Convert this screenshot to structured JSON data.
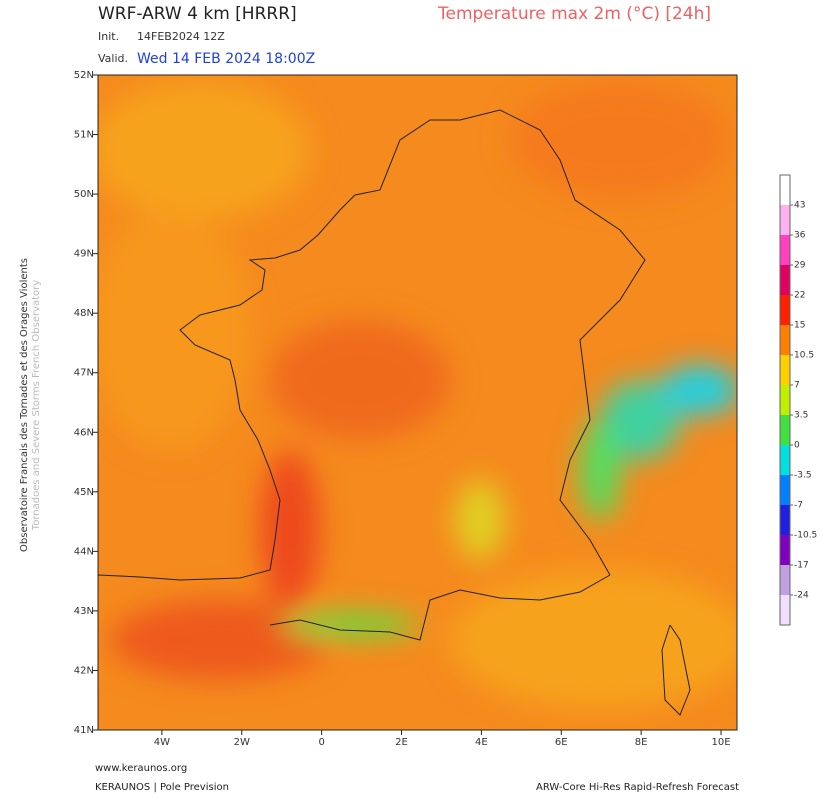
{
  "header": {
    "model": "WRF-ARW 4 km [HRRR]",
    "product": "Temperature max 2m (°C) [24h]",
    "init_label": "Init.",
    "init": "14FEB2024 12Z",
    "valid_label": "Valid.",
    "valid": "Wed 14 FEB 2024 18:00Z"
  },
  "map": {
    "xlim": [
      -5.6,
      10.4
    ],
    "ylim": [
      41,
      52
    ],
    "xticks": [
      {
        "value": -4,
        "label": "4W"
      },
      {
        "value": -2,
        "label": "2W"
      },
      {
        "value": 0,
        "label": "0"
      },
      {
        "value": 2,
        "label": "2E"
      },
      {
        "value": 4,
        "label": "4E"
      },
      {
        "value": 6,
        "label": "6E"
      },
      {
        "value": 8,
        "label": "8E"
      },
      {
        "value": 10,
        "label": "10E"
      }
    ],
    "yticks": [
      {
        "value": 41,
        "label": "41N"
      },
      {
        "value": 42,
        "label": "42N"
      },
      {
        "value": 43,
        "label": "43N"
      },
      {
        "value": 44,
        "label": "44N"
      },
      {
        "value": 45,
        "label": "45N"
      },
      {
        "value": 46,
        "label": "46N"
      },
      {
        "value": 47,
        "label": "47N"
      },
      {
        "value": 48,
        "label": "48N"
      },
      {
        "value": 49,
        "label": "49N"
      },
      {
        "value": 50,
        "label": "50N"
      },
      {
        "value": 51,
        "label": "51N"
      },
      {
        "value": 52,
        "label": "52N"
      }
    ]
  },
  "colorbar": {
    "ticks": [
      43,
      36,
      29,
      22,
      15,
      10.5,
      7,
      3.5,
      0,
      -3.5,
      -7,
      -10.5,
      -17,
      -24
    ],
    "colors": [
      "#ffffff",
      "#ffb0f0",
      "#ff40c0",
      "#e00060",
      "#ff2000",
      "#ff8000",
      "#ffd000",
      "#c0f000",
      "#40e040",
      "#00e0e0",
      "#0080ff",
      "#2020e0",
      "#8000c0",
      "#c0a0e0",
      "#f0e0ff"
    ]
  },
  "side": {
    "line1": "Observatoire Francais des Tornades et des Orages Violents",
    "line2": "Tornadoes and Severe Storms French Observatory"
  },
  "footer": {
    "url": "www.keraunos.org",
    "brand": "KERAUNOS | Pole Prevision",
    "model_name": "ARW-Core Hi-Res Rapid-Refresh Forecast"
  }
}
